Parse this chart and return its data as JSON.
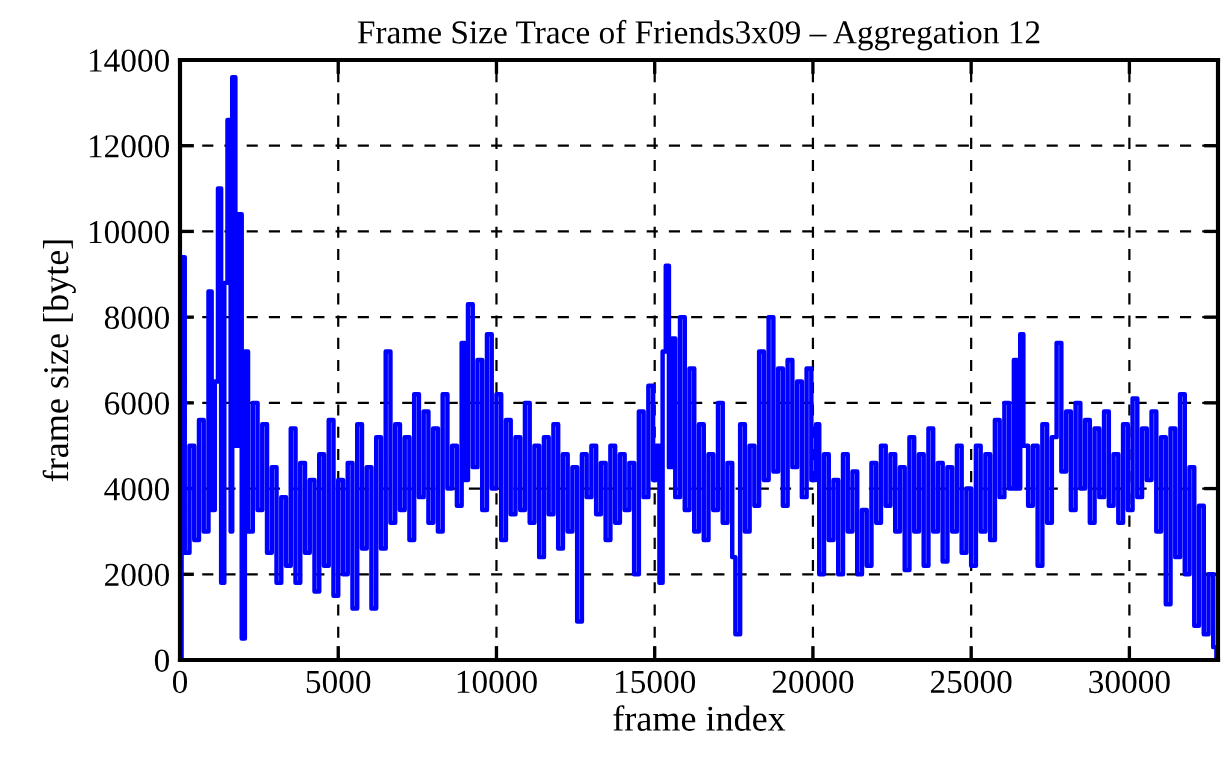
{
  "chart_data": {
    "type": "step",
    "title": "Frame Size Trace of Friends3x09 – Aggregation 12",
    "xlabel": "frame index",
    "ylabel": "frame size [byte]",
    "xlim": [
      0,
      32800
    ],
    "ylim": [
      0,
      14000
    ],
    "xticks": [
      0,
      5000,
      10000,
      15000,
      20000,
      25000,
      30000
    ],
    "yticks": [
      0,
      2000,
      4000,
      6000,
      8000,
      10000,
      12000,
      14000
    ],
    "grid": true,
    "legend": false,
    "series": [
      {
        "color": "#0000ff",
        "x": [
          0,
          50,
          150,
          300,
          450,
          600,
          750,
          900,
          1000,
          1100,
          1200,
          1300,
          1400,
          1500,
          1600,
          1650,
          1750,
          1850,
          1950,
          2050,
          2150,
          2300,
          2450,
          2600,
          2750,
          2900,
          3050,
          3200,
          3350,
          3500,
          3650,
          3800,
          3950,
          4100,
          4250,
          4400,
          4550,
          4700,
          4850,
          5000,
          5150,
          5300,
          5450,
          5600,
          5750,
          5900,
          6050,
          6200,
          6350,
          6500,
          6650,
          6800,
          6950,
          7100,
          7250,
          7400,
          7550,
          7700,
          7850,
          8000,
          8150,
          8300,
          8450,
          8600,
          8750,
          8900,
          9000,
          9100,
          9250,
          9400,
          9550,
          9700,
          9850,
          10000,
          10150,
          10300,
          10450,
          10600,
          10750,
          10900,
          11050,
          11200,
          11350,
          11500,
          11650,
          11800,
          11950,
          12100,
          12250,
          12400,
          12550,
          12700,
          12850,
          13000,
          13150,
          13300,
          13450,
          13600,
          13750,
          13900,
          14050,
          14200,
          14350,
          14500,
          14650,
          14800,
          14950,
          15050,
          15150,
          15250,
          15350,
          15450,
          15550,
          15650,
          15800,
          15950,
          16100,
          16250,
          16400,
          16550,
          16700,
          16850,
          17000,
          17150,
          17300,
          17450,
          17550,
          17700,
          17850,
          18000,
          18150,
          18300,
          18450,
          18600,
          18750,
          18900,
          19050,
          19200,
          19350,
          19500,
          19650,
          19800,
          19950,
          20100,
          20200,
          20350,
          20500,
          20650,
          20800,
          20950,
          21100,
          21250,
          21400,
          21550,
          21700,
          21850,
          22000,
          22150,
          22300,
          22450,
          22600,
          22750,
          22900,
          23050,
          23200,
          23350,
          23500,
          23650,
          23800,
          23950,
          24100,
          24250,
          24400,
          24550,
          24700,
          24850,
          25000,
          25150,
          25300,
          25450,
          25600,
          25750,
          25900,
          26050,
          26200,
          26350,
          26450,
          26550,
          26650,
          26800,
          26950,
          27100,
          27250,
          27400,
          27550,
          27700,
          27850,
          28000,
          28150,
          28300,
          28450,
          28600,
          28750,
          28900,
          29050,
          29200,
          29350,
          29500,
          29650,
          29800,
          29950,
          30100,
          30250,
          30400,
          30550,
          30700,
          30850,
          31000,
          31150,
          31300,
          31450,
          31600,
          31750,
          31900,
          32050,
          32200,
          32350,
          32500,
          32650,
          32750
        ],
        "values": [
          0,
          9400,
          2500,
          5000,
          2800,
          5600,
          3000,
          8600,
          3500,
          6500,
          11000,
          1800,
          8800,
          12600,
          3000,
          13600,
          5000,
          10400,
          500,
          7200,
          3000,
          6000,
          3500,
          5500,
          2500,
          4500,
          1800,
          3800,
          2200,
          5400,
          1800,
          4600,
          2500,
          4200,
          1600,
          4800,
          2200,
          5600,
          1500,
          4200,
          2000,
          4600,
          1200,
          5500,
          2600,
          4500,
          1200,
          5200,
          2600,
          7200,
          3200,
          5500,
          3500,
          5200,
          2800,
          6200,
          3800,
          5800,
          3200,
          5400,
          3000,
          6200,
          4000,
          5000,
          3600,
          7400,
          4200,
          8300,
          4500,
          7000,
          3500,
          7600,
          4000,
          6200,
          2800,
          5600,
          3400,
          5200,
          3500,
          6000,
          3200,
          5000,
          2400,
          5200,
          3400,
          5500,
          2600,
          4800,
          3000,
          4500,
          900,
          4800,
          3800,
          5000,
          3400,
          4600,
          2800,
          5000,
          3200,
          4800,
          3500,
          4600,
          2000,
          5800,
          3800,
          6400,
          4200,
          5000,
          1800,
          7200,
          9200,
          4500,
          7500,
          3800,
          8000,
          3500,
          6800,
          3000,
          5500,
          2800,
          4800,
          3500,
          6000,
          3200,
          4600,
          2400,
          600,
          5500,
          3000,
          5000,
          3600,
          7200,
          4200,
          8000,
          4400,
          6800,
          3600,
          7000,
          4500,
          6500,
          3800,
          6800,
          4200,
          5500,
          2000,
          4800,
          2800,
          4200,
          2000,
          4800,
          3000,
          4400,
          2000,
          3500,
          2200,
          4600,
          3200,
          5000,
          3600,
          4800,
          3000,
          4500,
          2100,
          5200,
          3000,
          4800,
          2200,
          5400,
          3000,
          4600,
          2300,
          4500,
          3000,
          5000,
          2500,
          4000,
          2200,
          5000,
          3000,
          4800,
          2800,
          5600,
          3800,
          6000,
          4000,
          7000,
          4000,
          7600,
          5000,
          3600,
          5000,
          2200,
          5500,
          3200,
          5200,
          7400,
          4400,
          5800,
          3500,
          6000,
          4000,
          5600,
          3200,
          5400,
          3800,
          5800,
          3600,
          4800,
          3200,
          5500,
          3500,
          6100,
          3800,
          5400,
          4200,
          5800,
          3000,
          5200,
          1300,
          5400,
          2400,
          6200,
          2000,
          4500,
          800,
          3600,
          600,
          2000,
          300,
          0
        ]
      }
    ]
  }
}
